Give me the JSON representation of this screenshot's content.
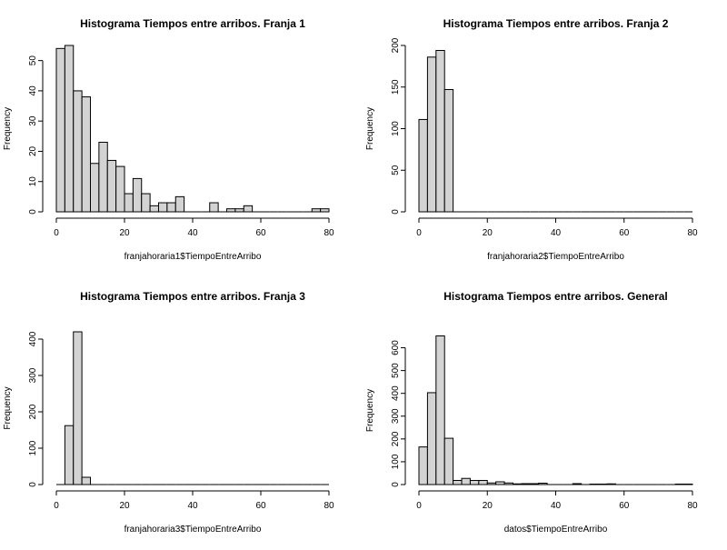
{
  "chart_data": [
    {
      "type": "bar",
      "title": "Histograma Tiempos entre arribos. Franja 1",
      "xlabel": "franjahoraria1$TiempoEntreArribo",
      "ylabel": "Frequency",
      "xlim": [
        0,
        80
      ],
      "ylim": [
        0,
        55
      ],
      "xticks": [
        0,
        20,
        40,
        60,
        80
      ],
      "yticks": [
        0,
        10,
        20,
        30,
        40,
        50
      ],
      "bin_width": 2.5,
      "bins": [
        {
          "x0": 0,
          "x1": 2.5,
          "count": 54
        },
        {
          "x0": 2.5,
          "x1": 5,
          "count": 55
        },
        {
          "x0": 5,
          "x1": 7.5,
          "count": 40
        },
        {
          "x0": 7.5,
          "x1": 10,
          "count": 38
        },
        {
          "x0": 10,
          "x1": 12.5,
          "count": 16
        },
        {
          "x0": 12.5,
          "x1": 15,
          "count": 23
        },
        {
          "x0": 15,
          "x1": 17.5,
          "count": 17
        },
        {
          "x0": 17.5,
          "x1": 20,
          "count": 15
        },
        {
          "x0": 20,
          "x1": 22.5,
          "count": 6
        },
        {
          "x0": 22.5,
          "x1": 25,
          "count": 11
        },
        {
          "x0": 25,
          "x1": 27.5,
          "count": 6
        },
        {
          "x0": 27.5,
          "x1": 30,
          "count": 2
        },
        {
          "x0": 30,
          "x1": 32.5,
          "count": 3
        },
        {
          "x0": 32.5,
          "x1": 35,
          "count": 3
        },
        {
          "x0": 35,
          "x1": 37.5,
          "count": 5
        },
        {
          "x0": 37.5,
          "x1": 40,
          "count": 0
        },
        {
          "x0": 40,
          "x1": 42.5,
          "count": 0
        },
        {
          "x0": 42.5,
          "x1": 45,
          "count": 0
        },
        {
          "x0": 45,
          "x1": 47.5,
          "count": 3
        },
        {
          "x0": 47.5,
          "x1": 50,
          "count": 0
        },
        {
          "x0": 50,
          "x1": 52.5,
          "count": 1
        },
        {
          "x0": 52.5,
          "x1": 55,
          "count": 1
        },
        {
          "x0": 55,
          "x1": 57.5,
          "count": 2
        },
        {
          "x0": 57.5,
          "x1": 60,
          "count": 0
        },
        {
          "x0": 60,
          "x1": 62.5,
          "count": 0
        },
        {
          "x0": 62.5,
          "x1": 65,
          "count": 0
        },
        {
          "x0": 65,
          "x1": 67.5,
          "count": 0
        },
        {
          "x0": 67.5,
          "x1": 70,
          "count": 0
        },
        {
          "x0": 70,
          "x1": 72.5,
          "count": 0
        },
        {
          "x0": 72.5,
          "x1": 75,
          "count": 0
        },
        {
          "x0": 75,
          "x1": 77.5,
          "count": 1
        },
        {
          "x0": 77.5,
          "x1": 80,
          "count": 1
        }
      ]
    },
    {
      "type": "bar",
      "title": "Histograma Tiempos entre arribos. Franja 2",
      "xlabel": "franjahoraria2$TiempoEntreArribo",
      "ylabel": "Frequency",
      "xlim": [
        0,
        80
      ],
      "ylim": [
        0,
        200
      ],
      "xticks": [
        0,
        20,
        40,
        60,
        80
      ],
      "yticks": [
        0,
        50,
        100,
        150,
        200
      ],
      "bin_width": 2.5,
      "bins": [
        {
          "x0": 0,
          "x1": 2.5,
          "count": 111
        },
        {
          "x0": 2.5,
          "x1": 5,
          "count": 186
        },
        {
          "x0": 5,
          "x1": 7.5,
          "count": 194
        },
        {
          "x0": 7.5,
          "x1": 10,
          "count": 147
        },
        {
          "x0": 10,
          "x1": 12.5,
          "count": 0
        },
        {
          "x0": 12.5,
          "x1": 15,
          "count": 0
        },
        {
          "x0": 15,
          "x1": 17.5,
          "count": 0
        },
        {
          "x0": 17.5,
          "x1": 20,
          "count": 0
        },
        {
          "x0": 20,
          "x1": 22.5,
          "count": 0
        },
        {
          "x0": 22.5,
          "x1": 25,
          "count": 0
        },
        {
          "x0": 25,
          "x1": 27.5,
          "count": 0
        },
        {
          "x0": 27.5,
          "x1": 30,
          "count": 0
        },
        {
          "x0": 30,
          "x1": 32.5,
          "count": 0
        },
        {
          "x0": 32.5,
          "x1": 35,
          "count": 0
        },
        {
          "x0": 35,
          "x1": 37.5,
          "count": 0
        },
        {
          "x0": 37.5,
          "x1": 40,
          "count": 0
        },
        {
          "x0": 40,
          "x1": 42.5,
          "count": 0
        },
        {
          "x0": 42.5,
          "x1": 45,
          "count": 0
        },
        {
          "x0": 45,
          "x1": 47.5,
          "count": 0
        },
        {
          "x0": 47.5,
          "x1": 50,
          "count": 0
        },
        {
          "x0": 50,
          "x1": 52.5,
          "count": 0
        },
        {
          "x0": 52.5,
          "x1": 55,
          "count": 0
        },
        {
          "x0": 55,
          "x1": 57.5,
          "count": 0
        },
        {
          "x0": 57.5,
          "x1": 60,
          "count": 0
        },
        {
          "x0": 60,
          "x1": 62.5,
          "count": 0
        },
        {
          "x0": 62.5,
          "x1": 65,
          "count": 0
        },
        {
          "x0": 65,
          "x1": 67.5,
          "count": 0
        },
        {
          "x0": 67.5,
          "x1": 70,
          "count": 0
        },
        {
          "x0": 70,
          "x1": 72.5,
          "count": 0
        },
        {
          "x0": 72.5,
          "x1": 75,
          "count": 0
        },
        {
          "x0": 75,
          "x1": 77.5,
          "count": 0
        },
        {
          "x0": 77.5,
          "x1": 80,
          "count": 0
        }
      ]
    },
    {
      "type": "bar",
      "title": "Histograma Tiempos entre arribos. Franja 3",
      "xlabel": "franjahoraria3$TiempoEntreArribo",
      "ylabel": "Frequency",
      "xlim": [
        0,
        80
      ],
      "ylim": [
        0,
        420
      ],
      "xticks": [
        0,
        20,
        40,
        60,
        80
      ],
      "yticks": [
        0,
        100,
        200,
        300,
        400
      ],
      "bin_width": 2.5,
      "bins": [
        {
          "x0": 0,
          "x1": 2.5,
          "count": 0
        },
        {
          "x0": 2.5,
          "x1": 5,
          "count": 162
        },
        {
          "x0": 5,
          "x1": 7.5,
          "count": 420
        },
        {
          "x0": 7.5,
          "x1": 10,
          "count": 20
        },
        {
          "x0": 10,
          "x1": 12.5,
          "count": 0
        },
        {
          "x0": 12.5,
          "x1": 15,
          "count": 0
        },
        {
          "x0": 15,
          "x1": 17.5,
          "count": 0
        },
        {
          "x0": 17.5,
          "x1": 20,
          "count": 0
        },
        {
          "x0": 20,
          "x1": 22.5,
          "count": 0
        },
        {
          "x0": 22.5,
          "x1": 25,
          "count": 0
        },
        {
          "x0": 25,
          "x1": 27.5,
          "count": 0
        },
        {
          "x0": 27.5,
          "x1": 30,
          "count": 0
        },
        {
          "x0": 30,
          "x1": 32.5,
          "count": 0
        },
        {
          "x0": 32.5,
          "x1": 35,
          "count": 0
        },
        {
          "x0": 35,
          "x1": 37.5,
          "count": 0
        },
        {
          "x0": 37.5,
          "x1": 40,
          "count": 0
        },
        {
          "x0": 40,
          "x1": 42.5,
          "count": 0
        },
        {
          "x0": 42.5,
          "x1": 45,
          "count": 0
        },
        {
          "x0": 45,
          "x1": 47.5,
          "count": 0
        },
        {
          "x0": 47.5,
          "x1": 50,
          "count": 0
        },
        {
          "x0": 50,
          "x1": 52.5,
          "count": 0
        },
        {
          "x0": 52.5,
          "x1": 55,
          "count": 0
        },
        {
          "x0": 55,
          "x1": 57.5,
          "count": 0
        },
        {
          "x0": 57.5,
          "x1": 60,
          "count": 0
        },
        {
          "x0": 60,
          "x1": 62.5,
          "count": 0
        },
        {
          "x0": 62.5,
          "x1": 65,
          "count": 0
        },
        {
          "x0": 65,
          "x1": 67.5,
          "count": 0
        },
        {
          "x0": 67.5,
          "x1": 70,
          "count": 0
        },
        {
          "x0": 70,
          "x1": 72.5,
          "count": 0
        },
        {
          "x0": 72.5,
          "x1": 75,
          "count": 0
        },
        {
          "x0": 75,
          "x1": 77.5,
          "count": 0
        },
        {
          "x0": 77.5,
          "x1": 80,
          "count": 0
        }
      ]
    },
    {
      "type": "bar",
      "title": "Histograma Tiempos entre arribos. General",
      "xlabel": "datos$TiempoEntreArribo",
      "ylabel": "Frequency",
      "xlim": [
        0,
        80
      ],
      "ylim": [
        0,
        650
      ],
      "xticks": [
        0,
        20,
        40,
        60,
        80
      ],
      "yticks": [
        0,
        100,
        200,
        300,
        400,
        500,
        600
      ],
      "bin_width": 2.5,
      "bins": [
        {
          "x0": 0,
          "x1": 2.5,
          "count": 165
        },
        {
          "x0": 2.5,
          "x1": 5,
          "count": 403
        },
        {
          "x0": 5,
          "x1": 7.5,
          "count": 652
        },
        {
          "x0": 7.5,
          "x1": 10,
          "count": 203
        },
        {
          "x0": 10,
          "x1": 12.5,
          "count": 18
        },
        {
          "x0": 12.5,
          "x1": 15,
          "count": 27
        },
        {
          "x0": 15,
          "x1": 17.5,
          "count": 18
        },
        {
          "x0": 17.5,
          "x1": 20,
          "count": 18
        },
        {
          "x0": 20,
          "x1": 22.5,
          "count": 7
        },
        {
          "x0": 22.5,
          "x1": 25,
          "count": 12
        },
        {
          "x0": 25,
          "x1": 27.5,
          "count": 7
        },
        {
          "x0": 27.5,
          "x1": 30,
          "count": 3
        },
        {
          "x0": 30,
          "x1": 32.5,
          "count": 4
        },
        {
          "x0": 32.5,
          "x1": 35,
          "count": 4
        },
        {
          "x0": 35,
          "x1": 37.5,
          "count": 6
        },
        {
          "x0": 37.5,
          "x1": 40,
          "count": 0
        },
        {
          "x0": 40,
          "x1": 42.5,
          "count": 0
        },
        {
          "x0": 42.5,
          "x1": 45,
          "count": 0
        },
        {
          "x0": 45,
          "x1": 47.5,
          "count": 4
        },
        {
          "x0": 47.5,
          "x1": 50,
          "count": 0
        },
        {
          "x0": 50,
          "x1": 52.5,
          "count": 2
        },
        {
          "x0": 52.5,
          "x1": 55,
          "count": 2
        },
        {
          "x0": 55,
          "x1": 57.5,
          "count": 3
        },
        {
          "x0": 57.5,
          "x1": 60,
          "count": 0
        },
        {
          "x0": 60,
          "x1": 62.5,
          "count": 0
        },
        {
          "x0": 62.5,
          "x1": 65,
          "count": 0
        },
        {
          "x0": 65,
          "x1": 67.5,
          "count": 0
        },
        {
          "x0": 67.5,
          "x1": 70,
          "count": 0
        },
        {
          "x0": 70,
          "x1": 72.5,
          "count": 0
        },
        {
          "x0": 72.5,
          "x1": 75,
          "count": 0
        },
        {
          "x0": 75,
          "x1": 77.5,
          "count": 2
        },
        {
          "x0": 77.5,
          "x1": 80,
          "count": 2
        }
      ]
    }
  ],
  "style": {
    "bar_fill": "#d3d3d3",
    "bar_stroke": "#000000",
    "background": "#ffffff"
  }
}
